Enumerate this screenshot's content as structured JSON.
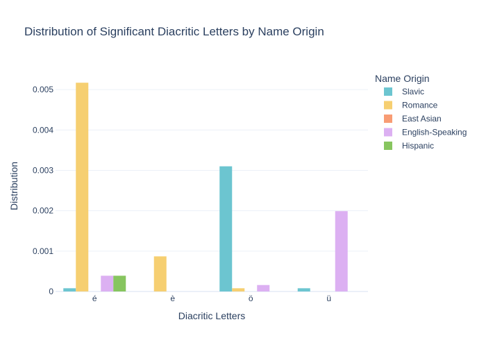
{
  "chart_data": {
    "type": "bar",
    "title": "Distribution of Significant Diacritic Letters by Name Origin",
    "xlabel": "Diacritic Letters",
    "ylabel": "Distribution",
    "categories": [
      "é",
      "è",
      "ö",
      "ü"
    ],
    "ylim": [
      0,
      0.0055
    ],
    "yticks": [
      0,
      0.001,
      0.002,
      0.003,
      0.004,
      0.005
    ],
    "ytick_labels": [
      "0",
      "0.001",
      "0.002",
      "0.003",
      "0.004",
      "0.005"
    ],
    "grid": true,
    "legend": {
      "title": "Name Origin",
      "position": "top-right"
    },
    "series": [
      {
        "name": "Slavic",
        "color": "#6cc5d0",
        "values": [
          8e-05,
          0.0,
          0.0031,
          8e-05
        ]
      },
      {
        "name": "Romance",
        "color": "#f6cf71",
        "values": [
          0.00517,
          0.00087,
          8e-05,
          0.0
        ]
      },
      {
        "name": "East Asian",
        "color": "#f89c74",
        "values": [
          0.0,
          0.0,
          0.0,
          0.0
        ]
      },
      {
        "name": "English-Speaking",
        "color": "#dcb0f2",
        "values": [
          0.00039,
          0.0,
          0.00016,
          0.00199
        ]
      },
      {
        "name": "Hispanic",
        "color": "#87c55f",
        "values": [
          0.00039,
          0.0,
          0.0,
          0.0
        ]
      }
    ]
  }
}
